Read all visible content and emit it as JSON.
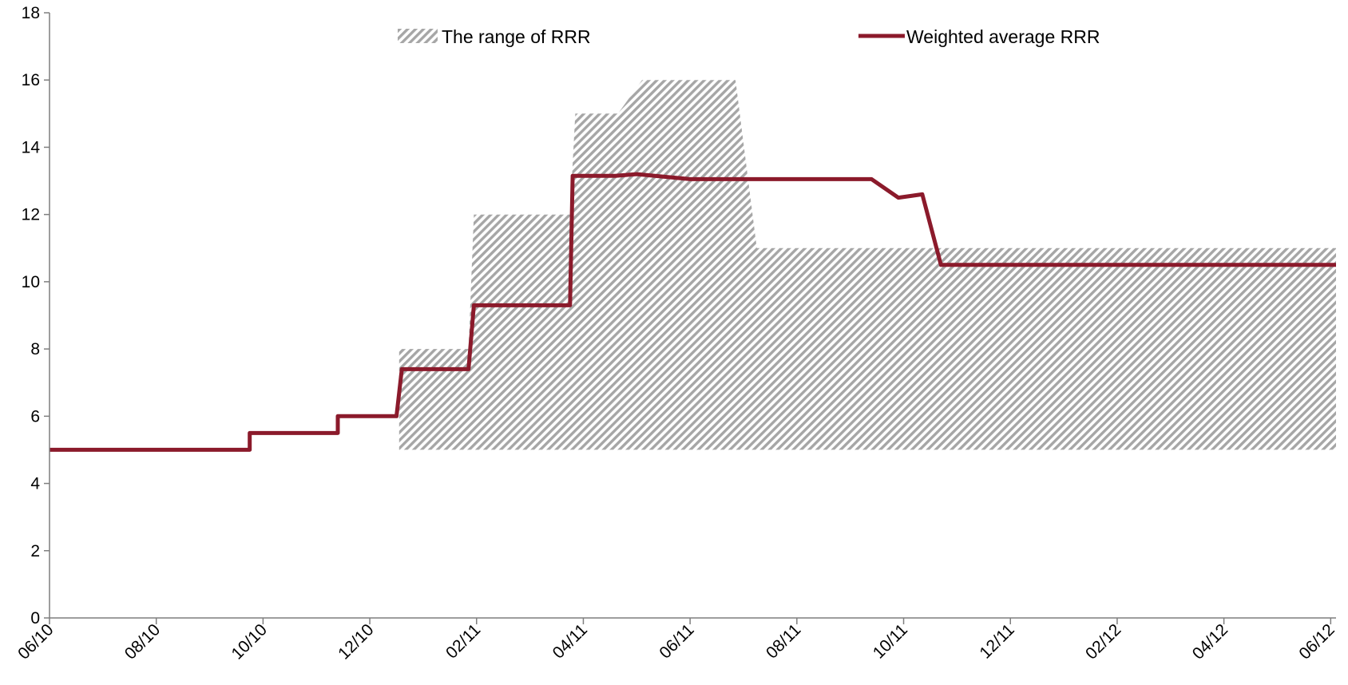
{
  "chart_data": {
    "type": "area",
    "x_ticks": [
      "06/10",
      "08/10",
      "10/10",
      "12/10",
      "02/11",
      "04/11",
      "06/11",
      "08/11",
      "10/11",
      "12/11",
      "02/12",
      "04/12",
      "06/12"
    ],
    "y_ticks": [
      "0",
      "2",
      "4",
      "6",
      "8",
      "10",
      "12",
      "14",
      "16",
      "18"
    ],
    "ylim": [
      0,
      18
    ],
    "x_range_months": [
      0,
      24.1
    ],
    "legend_position": "top",
    "series": [
      {
        "name": "The range of RRR",
        "type": "band",
        "style": "hatched",
        "color": "#a6a6a6",
        "x": [
          6.55,
          6.65,
          7.85,
          7.95,
          9.75,
          9.85,
          10.65,
          11.1,
          12.85,
          13.25,
          13.35
        ],
        "upper": [
          8,
          8,
          8,
          12,
          12,
          15,
          15,
          16,
          16,
          11,
          11
        ],
        "lower": [
          5,
          5,
          5,
          5,
          5,
          5,
          5,
          5,
          5,
          5,
          5
        ],
        "x_end": 24.1,
        "upper_end": 11,
        "lower_end": 5
      },
      {
        "name": "Weighted average RRR",
        "type": "line",
        "color": "#8b1a2b",
        "x": [
          0,
          3.75,
          3.75,
          5.4,
          5.4,
          6.5,
          6.6,
          7.85,
          7.95,
          9.75,
          9.8,
          10.6,
          11.0,
          12.0,
          15.4,
          15.9,
          16.35,
          16.7,
          24.1
        ],
        "y": [
          5,
          5,
          5.5,
          5.5,
          6,
          6,
          7.4,
          7.4,
          9.3,
          9.3,
          13.15,
          13.15,
          13.2,
          13.05,
          13.05,
          12.5,
          12.6,
          10.5,
          10.5
        ]
      }
    ]
  }
}
